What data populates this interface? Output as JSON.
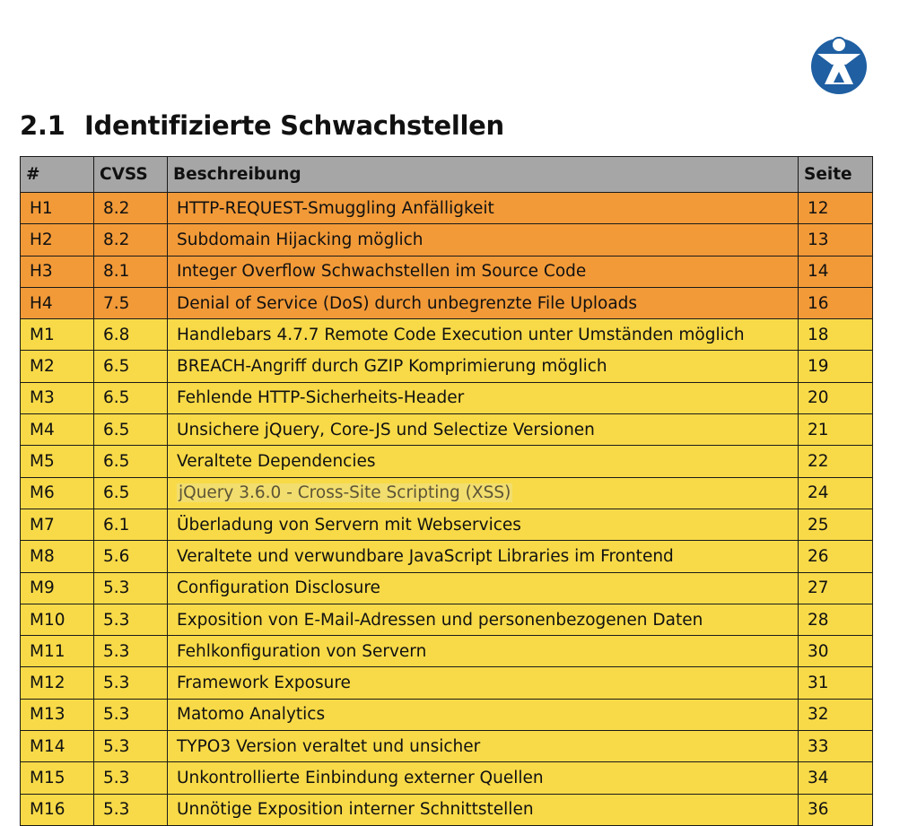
{
  "header": {
    "logo_icon": "person-logo-icon",
    "section_number": "2.1",
    "section_title": "Identifizierte Schwachstellen"
  },
  "table": {
    "columns": [
      "#",
      "CVSS",
      "Beschreibung",
      "Seite"
    ],
    "severity_colors": {
      "header": "#a6a6a6",
      "high": "#f29a38",
      "medium": "#f8da48"
    },
    "rows": [
      {
        "id": "H1",
        "cvss": "8.2",
        "desc": "HTTP-REQUEST-Smuggling Anfälligkeit",
        "page": "12",
        "severity": "high"
      },
      {
        "id": "H2",
        "cvss": "8.2",
        "desc": "Subdomain Hijacking möglich",
        "page": "13",
        "severity": "high"
      },
      {
        "id": "H3",
        "cvss": "8.1",
        "desc": "Integer Overflow Schwachstellen im Source Code",
        "page": "14",
        "severity": "high"
      },
      {
        "id": "H4",
        "cvss": "7.5",
        "desc": "Denial of Service (DoS) durch unbegrenzte File Uploads",
        "page": "16",
        "severity": "high"
      },
      {
        "id": "M1",
        "cvss": "6.8",
        "desc": "Handlebars 4.7.7 Remote Code Execution unter Umständen möglich",
        "page": "18",
        "severity": "medium"
      },
      {
        "id": "M2",
        "cvss": "6.5",
        "desc": "BREACH-Angriff durch GZIP Komprimierung möglich",
        "page": "19",
        "severity": "medium"
      },
      {
        "id": "M3",
        "cvss": "6.5",
        "desc": "Fehlende HTTP-Sicherheits-Header",
        "page": "20",
        "severity": "medium"
      },
      {
        "id": "M4",
        "cvss": "6.5",
        "desc": "Unsichere jQuery, Core-JS und Selectize Versionen",
        "page": "21",
        "severity": "medium"
      },
      {
        "id": "M5",
        "cvss": "6.5",
        "desc": "Veraltete Dependencies",
        "page": "22",
        "severity": "medium"
      },
      {
        "id": "M6",
        "cvss": "6.5",
        "desc": "jQuery 3.6.0 - Cross-Site Scripting (XSS)",
        "page": "24",
        "severity": "medium",
        "muted": true
      },
      {
        "id": "M7",
        "cvss": "6.1",
        "desc": "Überladung von Servern mit Webservices",
        "page": "25",
        "severity": "medium"
      },
      {
        "id": "M8",
        "cvss": "5.6",
        "desc": "Veraltete und verwundbare JavaScript Libraries im Frontend",
        "page": "26",
        "severity": "medium"
      },
      {
        "id": "M9",
        "cvss": "5.3",
        "desc": "Configuration Disclosure",
        "page": "27",
        "severity": "medium"
      },
      {
        "id": "M10",
        "cvss": "5.3",
        "desc": "Exposition von E-Mail-Adressen und personenbezogenen Daten",
        "page": "28",
        "severity": "medium"
      },
      {
        "id": "M11",
        "cvss": "5.3",
        "desc": "Fehlkonfiguration von Servern",
        "page": "30",
        "severity": "medium"
      },
      {
        "id": "M12",
        "cvss": "5.3",
        "desc": "Framework Exposure",
        "page": "31",
        "severity": "medium"
      },
      {
        "id": "M13",
        "cvss": "5.3",
        "desc": "Matomo Analytics",
        "page": "32",
        "severity": "medium"
      },
      {
        "id": "M14",
        "cvss": "5.3",
        "desc": "TYPO3 Version veraltet und unsicher",
        "page": "33",
        "severity": "medium"
      },
      {
        "id": "M15",
        "cvss": "5.3",
        "desc": "Unkontrollierte Einbindung externer Quellen",
        "page": "34",
        "severity": "medium"
      },
      {
        "id": "M16",
        "cvss": "5.3",
        "desc": "Unnötige Exposition interner Schnittstellen",
        "page": "36",
        "severity": "medium"
      }
    ]
  }
}
